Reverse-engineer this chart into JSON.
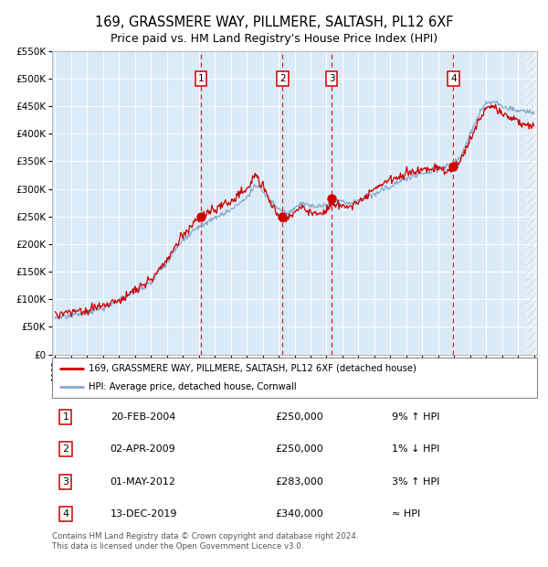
{
  "title": "169, GRASSMERE WAY, PILLMERE, SALTASH, PL12 6XF",
  "subtitle": "Price paid vs. HM Land Registry's House Price Index (HPI)",
  "bg_color": "#daeaf7",
  "x_start_year": 1995,
  "x_end_year": 2025,
  "y_min": 0,
  "y_max": 550000,
  "y_ticks": [
    0,
    50000,
    100000,
    150000,
    200000,
    250000,
    300000,
    350000,
    400000,
    450000,
    500000,
    550000
  ],
  "sales": [
    {
      "num": 1,
      "date": "20-FEB-2004",
      "year": 2004.13,
      "price": 250000
    },
    {
      "num": 2,
      "date": "02-APR-2009",
      "year": 2009.25,
      "price": 250000
    },
    {
      "num": 3,
      "date": "01-MAY-2012",
      "year": 2012.33,
      "price": 283000
    },
    {
      "num": 4,
      "date": "13-DEC-2019",
      "year": 2019.95,
      "price": 340000
    }
  ],
  "red_line_color": "#cc0000",
  "blue_line_color": "#88aacc",
  "sale_dot_color": "#cc0000",
  "vline_color": "#cc0000",
  "legend_label_red": "169, GRASSMERE WAY, PILLMERE, SALTASH, PL12 6XF (detached house)",
  "legend_label_blue": "HPI: Average price, detached house, Cornwall",
  "footnote": "Contains HM Land Registry data © Crown copyright and database right 2024.\nThis data is licensed under the Open Government Licence v3.0.",
  "table_rows": [
    [
      "1",
      "20-FEB-2004",
      "£250,000",
      "9% ↑ HPI"
    ],
    [
      "2",
      "02-APR-2009",
      "£250,000",
      "1% ↓ HPI"
    ],
    [
      "3",
      "01-MAY-2012",
      "£283,000",
      "3% ↑ HPI"
    ],
    [
      "4",
      "13-DEC-2019",
      "£340,000",
      "≈ HPI"
    ]
  ],
  "hpi_keypoints": [
    [
      1995.0,
      68000
    ],
    [
      1996.0,
      72000
    ],
    [
      1997.0,
      78000
    ],
    [
      1998.0,
      85000
    ],
    [
      1999.0,
      96000
    ],
    [
      2000.0,
      112000
    ],
    [
      2001.0,
      130000
    ],
    [
      2002.0,
      165000
    ],
    [
      2003.0,
      205000
    ],
    [
      2004.0,
      228000
    ],
    [
      2005.0,
      240000
    ],
    [
      2006.0,
      255000
    ],
    [
      2007.0,
      275000
    ],
    [
      2007.5,
      300000
    ],
    [
      2008.0,
      290000
    ],
    [
      2008.5,
      270000
    ],
    [
      2009.0,
      255000
    ],
    [
      2009.5,
      248000
    ],
    [
      2010.0,
      258000
    ],
    [
      2010.5,
      265000
    ],
    [
      2011.0,
      260000
    ],
    [
      2011.5,
      258000
    ],
    [
      2012.0,
      262000
    ],
    [
      2012.5,
      268000
    ],
    [
      2013.0,
      270000
    ],
    [
      2013.5,
      268000
    ],
    [
      2014.0,
      272000
    ],
    [
      2014.5,
      278000
    ],
    [
      2015.0,
      285000
    ],
    [
      2015.5,
      292000
    ],
    [
      2016.0,
      298000
    ],
    [
      2016.5,
      305000
    ],
    [
      2017.0,
      310000
    ],
    [
      2017.5,
      315000
    ],
    [
      2018.0,
      318000
    ],
    [
      2018.5,
      322000
    ],
    [
      2019.0,
      325000
    ],
    [
      2019.5,
      330000
    ],
    [
      2020.0,
      338000
    ],
    [
      2020.5,
      355000
    ],
    [
      2021.0,
      390000
    ],
    [
      2021.5,
      420000
    ],
    [
      2022.0,
      445000
    ],
    [
      2022.5,
      450000
    ],
    [
      2023.0,
      440000
    ],
    [
      2023.5,
      435000
    ],
    [
      2024.0,
      430000
    ],
    [
      2024.5,
      428000
    ],
    [
      2025.0,
      425000
    ]
  ],
  "red_keypoints": [
    [
      1995.0,
      75000
    ],
    [
      1996.0,
      80000
    ],
    [
      1997.0,
      85000
    ],
    [
      1998.0,
      92000
    ],
    [
      1999.0,
      105000
    ],
    [
      2000.0,
      122000
    ],
    [
      2001.0,
      142000
    ],
    [
      2002.0,
      178000
    ],
    [
      2003.0,
      222000
    ],
    [
      2004.0,
      245000
    ],
    [
      2004.13,
      250000
    ],
    [
      2005.0,
      262000
    ],
    [
      2006.0,
      278000
    ],
    [
      2007.0,
      298000
    ],
    [
      2007.5,
      328000
    ],
    [
      2008.0,
      310000
    ],
    [
      2008.5,
      280000
    ],
    [
      2009.0,
      258000
    ],
    [
      2009.25,
      250000
    ],
    [
      2009.5,
      252000
    ],
    [
      2010.0,
      268000
    ],
    [
      2010.5,
      278000
    ],
    [
      2011.0,
      272000
    ],
    [
      2011.5,
      265000
    ],
    [
      2012.0,
      270000
    ],
    [
      2012.33,
      283000
    ],
    [
      2012.5,
      280000
    ],
    [
      2013.0,
      275000
    ],
    [
      2013.5,
      272000
    ],
    [
      2014.0,
      278000
    ],
    [
      2014.5,
      285000
    ],
    [
      2015.0,
      295000
    ],
    [
      2015.5,
      305000
    ],
    [
      2016.0,
      312000
    ],
    [
      2016.5,
      318000
    ],
    [
      2017.0,
      325000
    ],
    [
      2017.5,
      330000
    ],
    [
      2018.0,
      335000
    ],
    [
      2018.5,
      338000
    ],
    [
      2019.0,
      338000
    ],
    [
      2019.95,
      340000
    ],
    [
      2020.0,
      342000
    ],
    [
      2020.5,
      362000
    ],
    [
      2021.0,
      398000
    ],
    [
      2021.5,
      430000
    ],
    [
      2022.0,
      458000
    ],
    [
      2022.5,
      462000
    ],
    [
      2023.0,
      450000
    ],
    [
      2023.5,
      445000
    ],
    [
      2024.0,
      438000
    ],
    [
      2024.5,
      432000
    ],
    [
      2025.0,
      428000
    ]
  ]
}
